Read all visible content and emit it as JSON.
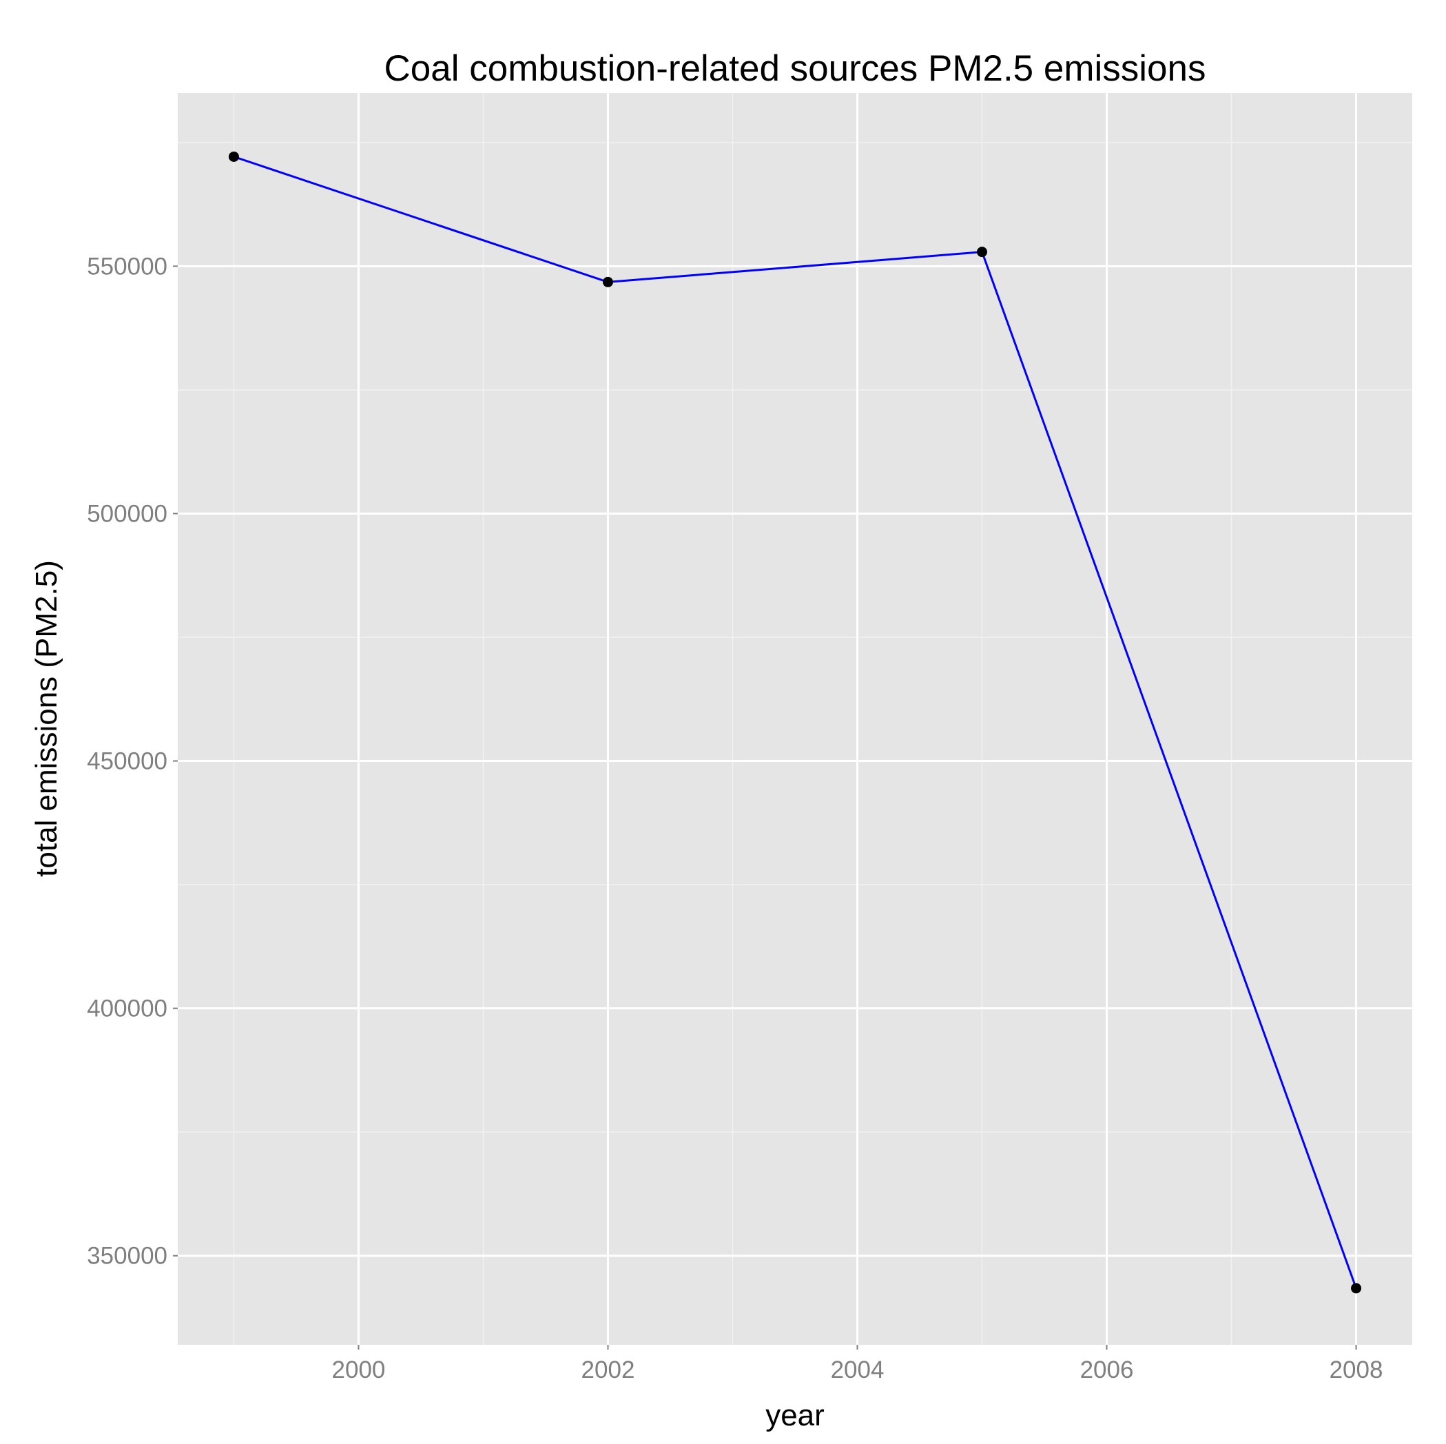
{
  "chart_data": {
    "type": "line",
    "title": "Coal combustion-related sources PM2.5 emissions",
    "xlabel": "year",
    "ylabel": "total emissions (PM2.5)",
    "x_ticks": [
      "2000",
      "2002",
      "2004",
      "2006",
      "2008"
    ],
    "y_ticks": [
      "350000",
      "400000",
      "450000",
      "500000",
      "550000"
    ],
    "xlim": [
      1998.55,
      2008.45
    ],
    "ylim": [
      332000,
      585000
    ],
    "grid": true,
    "series": [
      {
        "x": [
          1999,
          2002,
          2005,
          2008
        ],
        "values": [
          572126,
          546789,
          552881,
          343432
        ],
        "line_color": "#0000ff",
        "point_color": "#000000"
      }
    ],
    "colors": {
      "panel_background": "#e5e5e5",
      "grid_major": "#ffffff",
      "grid_minor": "#f2f2f2",
      "tick_label": "#7f7f7f"
    }
  }
}
